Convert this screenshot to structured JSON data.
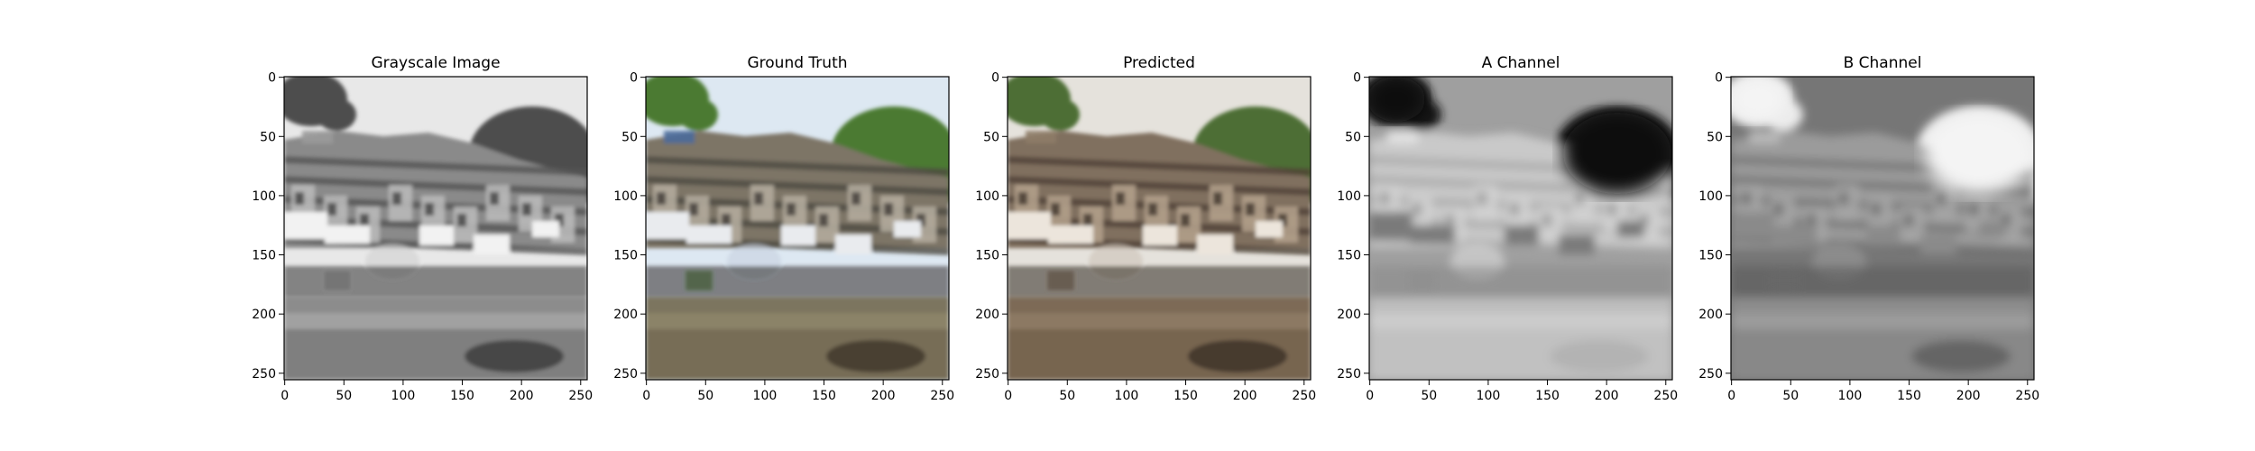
{
  "chart_data": [
    {
      "type": "image",
      "title": "Grayscale Image",
      "x_ticks": [
        "0",
        "50",
        "100",
        "150",
        "200",
        "250"
      ],
      "y_ticks": [
        "0",
        "50",
        "100",
        "150",
        "200",
        "250"
      ],
      "xlim": [
        -0.5,
        255.5
      ],
      "ylim": [
        255.5,
        -0.5
      ],
      "image_kind": "grayscale-photo"
    },
    {
      "type": "image",
      "title": "Ground Truth",
      "x_ticks": [
        "0",
        "50",
        "100",
        "150",
        "200",
        "250"
      ],
      "y_ticks": [
        "0",
        "50",
        "100",
        "150",
        "200",
        "250"
      ],
      "xlim": [
        -0.5,
        255.5
      ],
      "ylim": [
        255.5,
        -0.5
      ],
      "image_kind": "color-photo"
    },
    {
      "type": "image",
      "title": "Predicted",
      "x_ticks": [
        "0",
        "50",
        "100",
        "150",
        "200",
        "250"
      ],
      "y_ticks": [
        "0",
        "50",
        "100",
        "150",
        "200",
        "250"
      ],
      "xlim": [
        -0.5,
        255.5
      ],
      "ylim": [
        255.5,
        -0.5
      ],
      "image_kind": "sepia-photo"
    },
    {
      "type": "image",
      "title": "A Channel",
      "x_ticks": [
        "0",
        "50",
        "100",
        "150",
        "200",
        "250"
      ],
      "y_ticks": [
        "0",
        "50",
        "100",
        "150",
        "200",
        "250"
      ],
      "xlim": [
        -0.5,
        255.5
      ],
      "ylim": [
        255.5,
        -0.5
      ],
      "image_kind": "a-channel"
    },
    {
      "type": "image",
      "title": "B Channel",
      "x_ticks": [
        "0",
        "50",
        "100",
        "150",
        "200",
        "250"
      ],
      "y_ticks": [
        "0",
        "50",
        "100",
        "150",
        "200",
        "250"
      ],
      "xlim": [
        -0.5,
        255.5
      ],
      "ylim": [
        255.5,
        -0.5
      ],
      "image_kind": "b-channel"
    }
  ]
}
